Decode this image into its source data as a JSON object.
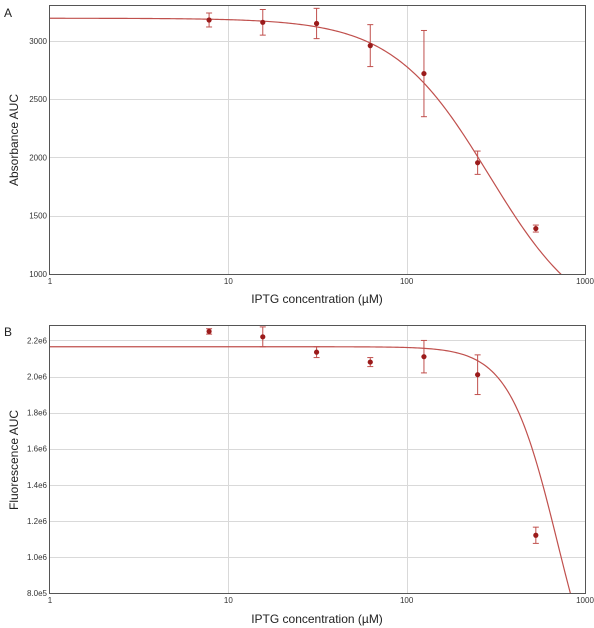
{
  "chart_data": [
    {
      "type": "scatter",
      "panel": "A",
      "xlabel": "IPTG concentration (µM)",
      "ylabel": "Absorbance AUC",
      "xscale": "log",
      "xlim": [
        1,
        1000
      ],
      "ylim": [
        1000,
        3300
      ],
      "xticks": [
        1,
        10,
        100,
        1000
      ],
      "xtick_labels": [
        "1",
        "10",
        "100",
        "1000"
      ],
      "yticks": [
        1000,
        1500,
        2000,
        2500,
        3000
      ],
      "ytick_labels": [
        "1000",
        "1500",
        "2000",
        "2500",
        "3000"
      ],
      "grid": true,
      "color": "#c0504d",
      "point_color": "#9b1b1b",
      "points": [
        {
          "x": 7.8,
          "y": 3180,
          "err": 60
        },
        {
          "x": 15.6,
          "y": 3160,
          "err": 110
        },
        {
          "x": 31.25,
          "y": 3150,
          "err": 130
        },
        {
          "x": 62.5,
          "y": 2960,
          "err": 180
        },
        {
          "x": 125,
          "y": 2720,
          "err": 370
        },
        {
          "x": 250,
          "y": 1955,
          "err": 100
        },
        {
          "x": 530,
          "y": 1390,
          "err": 30
        }
      ],
      "fit": {
        "top": 3195,
        "bottom": 500,
        "ec50": 290,
        "hill": 1.6
      }
    },
    {
      "type": "scatter",
      "panel": "B",
      "xlabel": "IPTG concentration (µM)",
      "ylabel": "Fluorescence AUC",
      "xscale": "log",
      "xlim": [
        1,
        1000
      ],
      "ylim": [
        800000,
        2280000
      ],
      "xticks": [
        1,
        10,
        100,
        1000
      ],
      "xtick_labels": [
        "1",
        "10",
        "100",
        "1000"
      ],
      "yticks": [
        800000,
        1000000,
        1200000,
        1400000,
        1600000,
        1800000,
        2000000,
        2200000
      ],
      "ytick_labels": [
        "8.0e5",
        "1.0e6",
        "1.2e6",
        "1.4e6",
        "1.6e6",
        "1.8e6",
        "2.0e6",
        "2.2e6"
      ],
      "grid": true,
      "color": "#c0504d",
      "point_color": "#9b1b1b",
      "points": [
        {
          "x": 7.8,
          "y": 2250000,
          "err": 15000
        },
        {
          "x": 15.6,
          "y": 2220000,
          "err": 55000
        },
        {
          "x": 31.25,
          "y": 2135000,
          "err": 30000
        },
        {
          "x": 62.5,
          "y": 2080000,
          "err": 25000
        },
        {
          "x": 125,
          "y": 2110000,
          "err": 90000
        },
        {
          "x": 250,
          "y": 2010000,
          "err": 110000
        },
        {
          "x": 530,
          "y": 1120000,
          "err": 45000
        }
      ],
      "fit": {
        "top": 2165000,
        "bottom": 0,
        "ec50": 700,
        "hill": 3.2
      }
    }
  ]
}
